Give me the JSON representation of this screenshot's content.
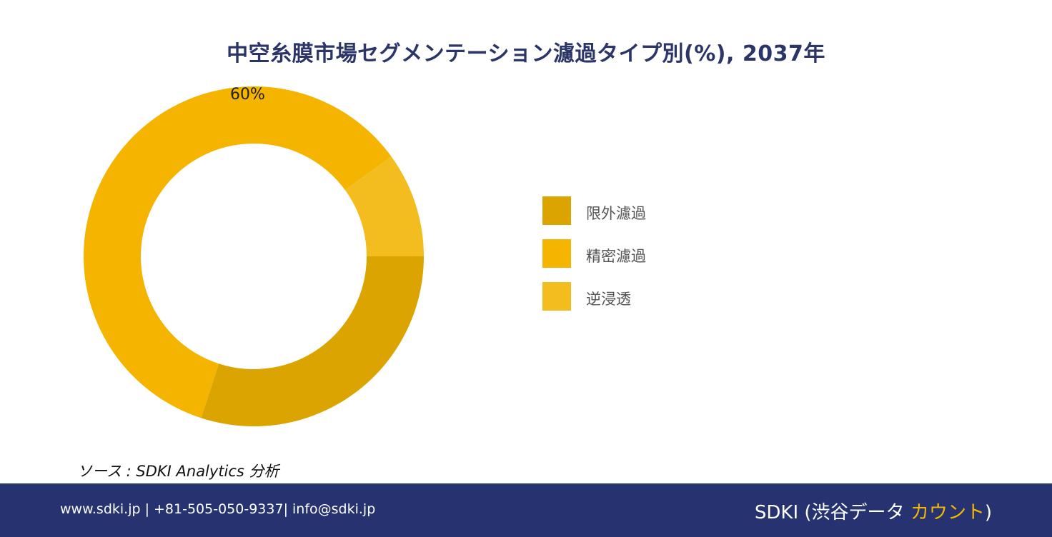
{
  "title": "中空糸膜市場セグメンテーション濾過タイプ別(%), 2037年",
  "chart_data": {
    "type": "pie",
    "title": "中空糸膜市場セグメンテーション濾過タイプ別(%), 2037年",
    "donut": true,
    "categories": [
      "限外濾過",
      "精密濾過",
      "逆浸透"
    ],
    "values": [
      30,
      60,
      10
    ],
    "colors": [
      "#dba400",
      "#f4b400",
      "#f4bd1f"
    ],
    "data_labels": [
      "",
      "60%",
      ""
    ],
    "legend_position": "right"
  },
  "source": "ソース : SDKI Analytics 分析",
  "footer": {
    "contact": "www.sdki.jp | +81-505-050-9337| info@sdki.jp",
    "brand_prefix": "SDKI (渋谷データ ",
    "brand_accent": "カウント",
    "brand_suffix": ")"
  }
}
